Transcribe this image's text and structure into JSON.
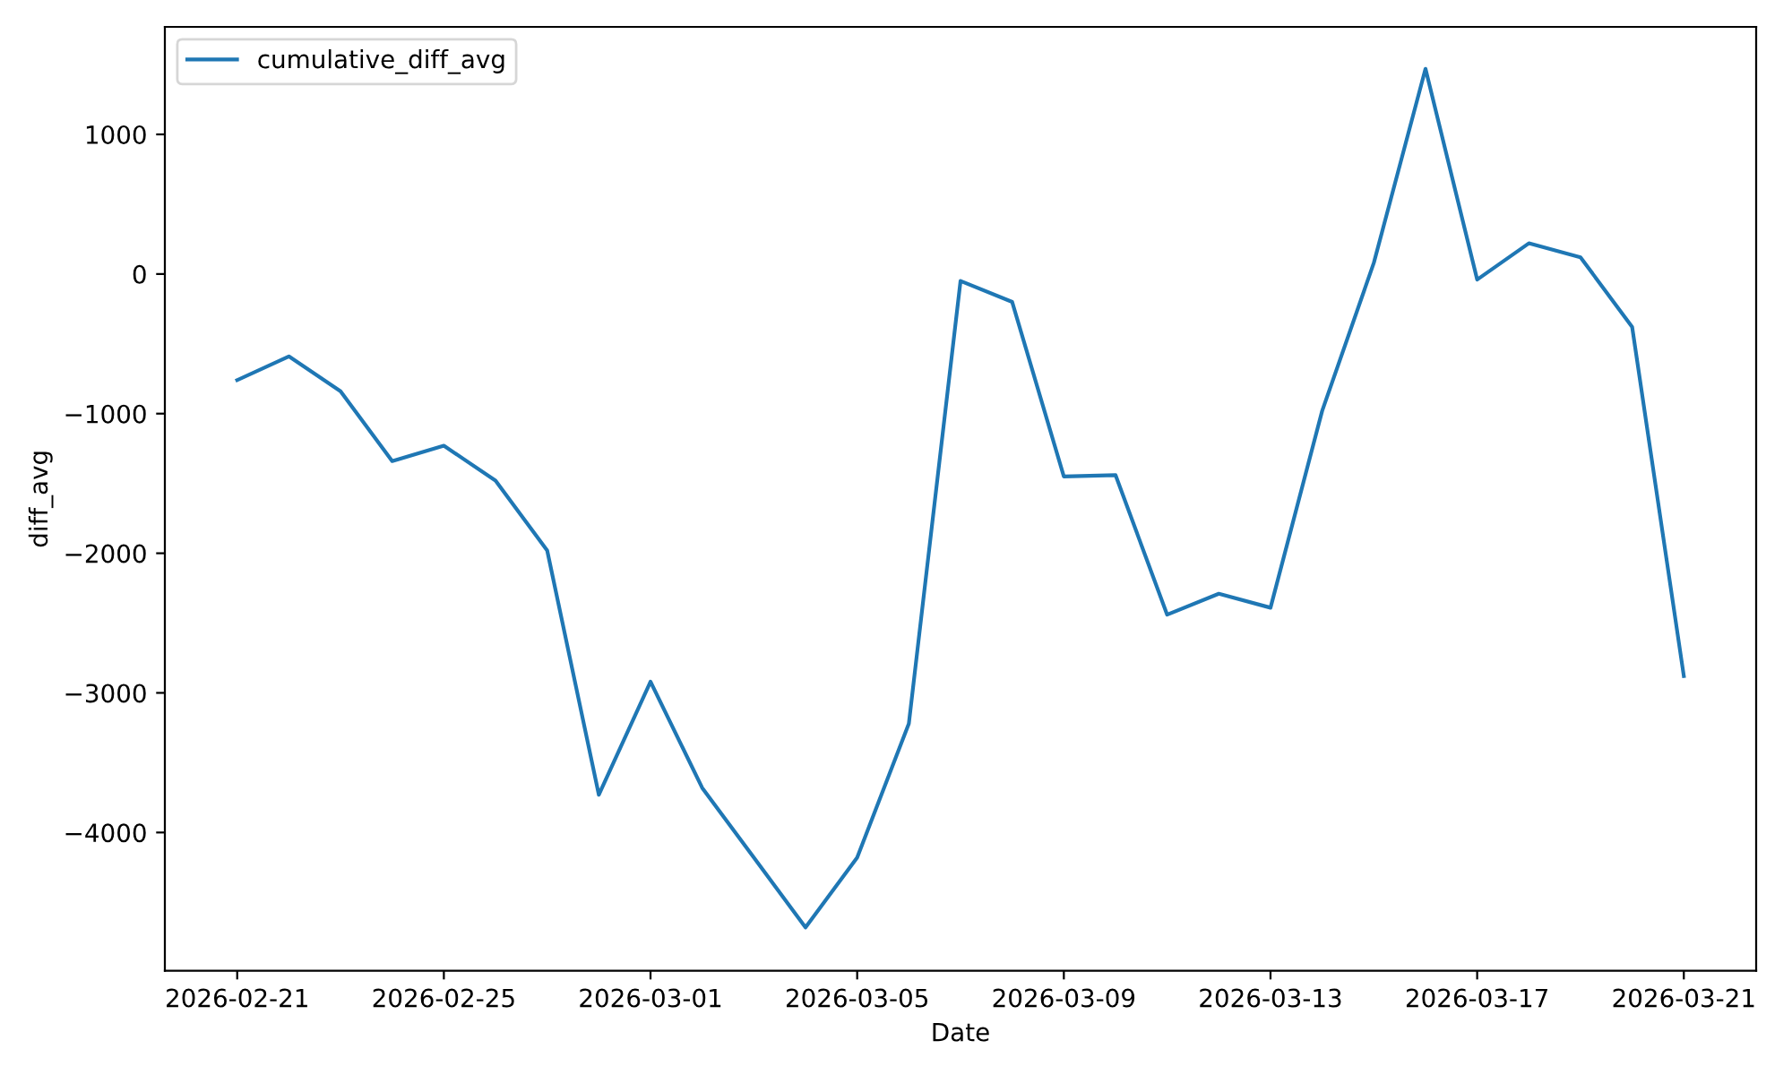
{
  "chart_data": {
    "type": "line",
    "xlabel": "Date",
    "ylabel": "diff_avg",
    "x": [
      "2026-02-21",
      "2026-02-22",
      "2026-02-23",
      "2026-02-24",
      "2026-02-25",
      "2026-02-26",
      "2026-02-27",
      "2026-02-28",
      "2026-03-01",
      "2026-03-02",
      "2026-03-03",
      "2026-03-04",
      "2026-03-05",
      "2026-03-06",
      "2026-03-07",
      "2026-03-08",
      "2026-03-09",
      "2026-03-10",
      "2026-03-11",
      "2026-03-12",
      "2026-03-13",
      "2026-03-14",
      "2026-03-15",
      "2026-03-16",
      "2026-03-17",
      "2026-03-18",
      "2026-03-19",
      "2026-03-20",
      "2026-03-21"
    ],
    "series": [
      {
        "name": "cumulative_diff_avg",
        "color": "#1f77b4",
        "values": [
          -760,
          -590,
          -840,
          -1340,
          -1230,
          -1480,
          -1980,
          -3730,
          -2920,
          -3680,
          -4180,
          -4680,
          -4180,
          -3220,
          -50,
          -200,
          -1450,
          -1440,
          -2440,
          -2290,
          -2390,
          -980,
          80,
          1470,
          -40,
          220,
          120,
          -380,
          -2880
        ]
      }
    ],
    "xlim": [
      "2026-02-19T14:24",
      "2026-03-22T09:36"
    ],
    "xticks": [
      "2026-02-21",
      "2026-02-25",
      "2026-03-01",
      "2026-03-05",
      "2026-03-09",
      "2026-03-13",
      "2026-03-17",
      "2026-03-21"
    ],
    "ylim": [
      -4990,
      1770
    ],
    "yticks": [
      -4000,
      -3000,
      -2000,
      -1000,
      0,
      1000
    ],
    "legend": "top left",
    "grid": false,
    "marker": "none",
    "line_style": "solid"
  }
}
